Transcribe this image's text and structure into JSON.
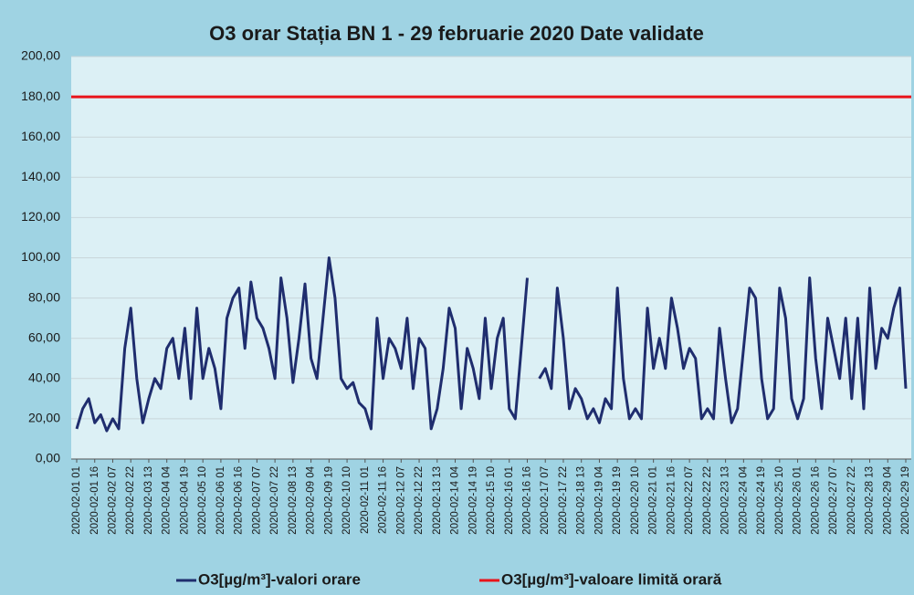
{
  "chart_data": {
    "type": "line",
    "title": "O3 orar Stația BN 1 - 29 februarie 2020 Date validate",
    "categories": [
      "2020-02-01 01",
      null,
      null,
      "2020-02-01 16",
      null,
      null,
      "2020-02-02 07",
      null,
      null,
      "2020-02-02 22",
      null,
      null,
      "2020-02-03 13",
      null,
      null,
      "2020-02-04 04",
      null,
      null,
      "2020-02-04 19",
      null,
      null,
      "2020-02-05 10",
      null,
      null,
      "2020-02-06 01",
      null,
      null,
      "2020-02-06 16",
      null,
      null,
      "2020-02-07 07",
      null,
      null,
      "2020-02-07 22",
      null,
      null,
      "2020-02-08 13",
      null,
      null,
      "2020-02-09 04",
      null,
      null,
      "2020-02-09 19",
      null,
      null,
      "2020-02-10 10",
      null,
      null,
      "2020-02-11 01",
      null,
      null,
      "2020-02-11 16",
      null,
      null,
      "2020-02-12 07",
      null,
      null,
      "2020-02-12 22",
      null,
      null,
      "2020-02-13 13",
      null,
      null,
      "2020-02-14 04",
      null,
      null,
      "2020-02-14 19",
      null,
      null,
      "2020-02-15 10",
      null,
      null,
      "2020-02-16 01",
      null,
      null,
      "2020-02-16 16",
      null,
      null,
      "2020-02-17 07",
      null,
      null,
      "2020-02-17 22",
      null,
      null,
      "2020-02-18 13",
      null,
      null,
      "2020-02-19 04",
      null,
      null,
      "2020-02-19 19",
      null,
      null,
      "2020-02-20 10",
      null,
      null,
      "2020-02-21 01",
      null,
      null,
      "2020-02-21 16",
      null,
      null,
      "2020-02-22 07",
      null,
      null,
      "2020-02-22 22",
      null,
      null,
      "2020-02-23 13",
      null,
      null,
      "2020-02-24 04",
      null,
      null,
      "2020-02-24 19",
      null,
      null,
      "2020-02-25 10",
      null,
      null,
      "2020-02-26 01",
      null,
      null,
      "2020-02-26 16",
      null,
      null,
      "2020-02-27 07",
      null,
      null,
      "2020-02-27 22",
      null,
      null,
      "2020-02-28 13",
      null,
      null,
      "2020-02-29 04",
      null,
      null,
      "2020-02-29 19"
    ],
    "series": [
      {
        "name": "O3[µg/m³]-valori orare",
        "color": "#1f2d6e",
        "values": [
          15,
          25,
          30,
          18,
          22,
          14,
          20,
          15,
          55,
          75,
          40,
          18,
          30,
          40,
          35,
          55,
          60,
          40,
          65,
          30,
          75,
          40,
          55,
          45,
          25,
          70,
          80,
          85,
          55,
          88,
          70,
          65,
          55,
          40,
          90,
          70,
          38,
          60,
          87,
          50,
          40,
          70,
          100,
          80,
          40,
          35,
          38,
          28,
          25,
          15,
          70,
          40,
          60,
          55,
          45,
          70,
          35,
          60,
          55,
          15,
          25,
          45,
          75,
          65,
          25,
          55,
          45,
          30,
          70,
          35,
          60,
          70,
          25,
          20,
          55,
          90,
          null,
          40,
          45,
          35,
          85,
          60,
          25,
          35,
          30,
          20,
          25,
          18,
          30,
          25,
          85,
          40,
          20,
          25,
          20,
          75,
          45,
          60,
          45,
          80,
          65,
          45,
          55,
          50,
          20,
          25,
          20,
          65,
          40,
          18,
          25,
          55,
          85,
          80,
          40,
          20,
          25,
          85,
          70,
          30,
          20,
          30,
          90,
          50,
          25,
          70,
          55,
          40,
          70,
          30,
          70,
          25,
          85,
          45,
          65,
          60,
          75,
          85,
          35
        ]
      }
    ],
    "reference_lines": [
      {
        "name": "O3[µg/m³]-valoare limită orară",
        "value": 180,
        "color": "#e8141b"
      }
    ],
    "ylim": [
      0,
      200
    ],
    "yticks": [
      {
        "value": 0,
        "label": "0,00"
      },
      {
        "value": 20,
        "label": "20,00"
      },
      {
        "value": 40,
        "label": "40,00"
      },
      {
        "value": 60,
        "label": "60,00"
      },
      {
        "value": 80,
        "label": "80,00"
      },
      {
        "value": 100,
        "label": "100,00"
      },
      {
        "value": 120,
        "label": "120,00"
      },
      {
        "value": 140,
        "label": "140,00"
      },
      {
        "value": 160,
        "label": "160,00"
      },
      {
        "value": 180,
        "label": "180,00"
      },
      {
        "value": 200,
        "label": "200,00"
      }
    ],
    "grid": true
  }
}
